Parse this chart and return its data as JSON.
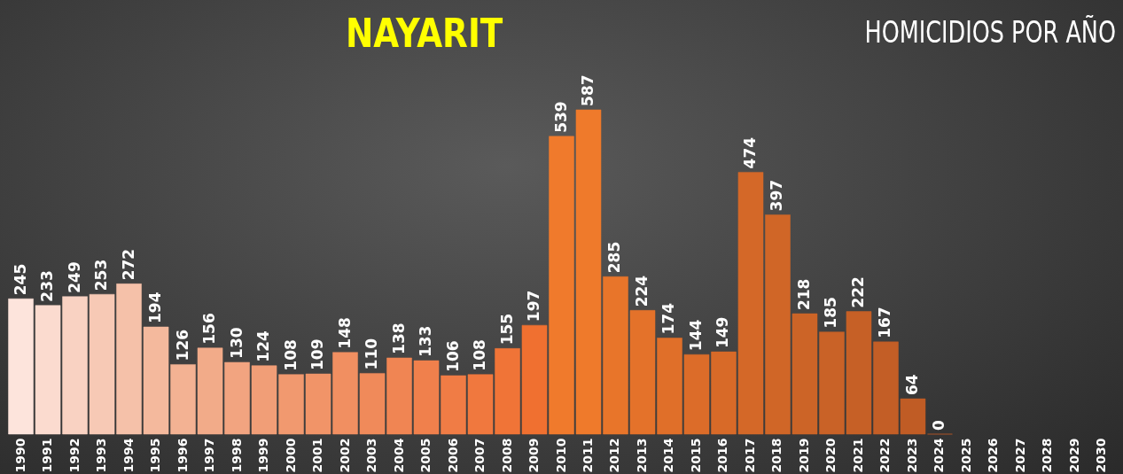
{
  "chart_data": {
    "type": "bar",
    "title": "NAYARIT",
    "subtitle": "HOMICIDIOS POR AÑO",
    "categories": [
      "1990",
      "1991",
      "1992",
      "1993",
      "1994",
      "1995",
      "1996",
      "1997",
      "1998",
      "1999",
      "2000",
      "2001",
      "2002",
      "2003",
      "2004",
      "2005",
      "2006",
      "2007",
      "2008",
      "2009",
      "2010",
      "2011",
      "2012",
      "2013",
      "2014",
      "2015",
      "2016",
      "2017",
      "2018",
      "2019",
      "2020",
      "2021",
      "2022",
      "2023",
      "2024",
      "2025",
      "2026",
      "2027",
      "2028",
      "2029",
      "2030"
    ],
    "values": [
      245,
      233,
      249,
      253,
      272,
      194,
      126,
      156,
      130,
      124,
      108,
      109,
      148,
      110,
      138,
      133,
      106,
      108,
      155,
      197,
      539,
      587,
      285,
      224,
      174,
      144,
      149,
      474,
      397,
      218,
      185,
      222,
      167,
      64,
      0,
      null,
      null,
      null,
      null,
      null,
      null
    ],
    "colors": [
      "#fde4dc",
      "#fbdbcf",
      "#f9d2c2",
      "#f7c9b5",
      "#f5c1a9",
      "#f4b99d",
      "#f3b293",
      "#f2ab89",
      "#f2a480",
      "#f19e77",
      "#f1996f",
      "#f19468",
      "#f18f61",
      "#f08a5a",
      "#f08553",
      "#f0804c",
      "#f07c45",
      "#f0783e",
      "#f07437",
      "#f07030",
      "#f07a2c",
      "#ef7a2b",
      "#e8752a",
      "#e4722a",
      "#e06f29",
      "#dc6c29",
      "#d86a28",
      "#d46828",
      "#d06627",
      "#cc6427",
      "#c96227",
      "#c66026",
      "#c35e26",
      "#c05c25",
      "#bd5a25",
      "#bb5924",
      "#b95824",
      "#b75724",
      "#b55623",
      "#b35523",
      "#b15423"
    ],
    "data_labels": true,
    "tick_labels": "x"
  }
}
